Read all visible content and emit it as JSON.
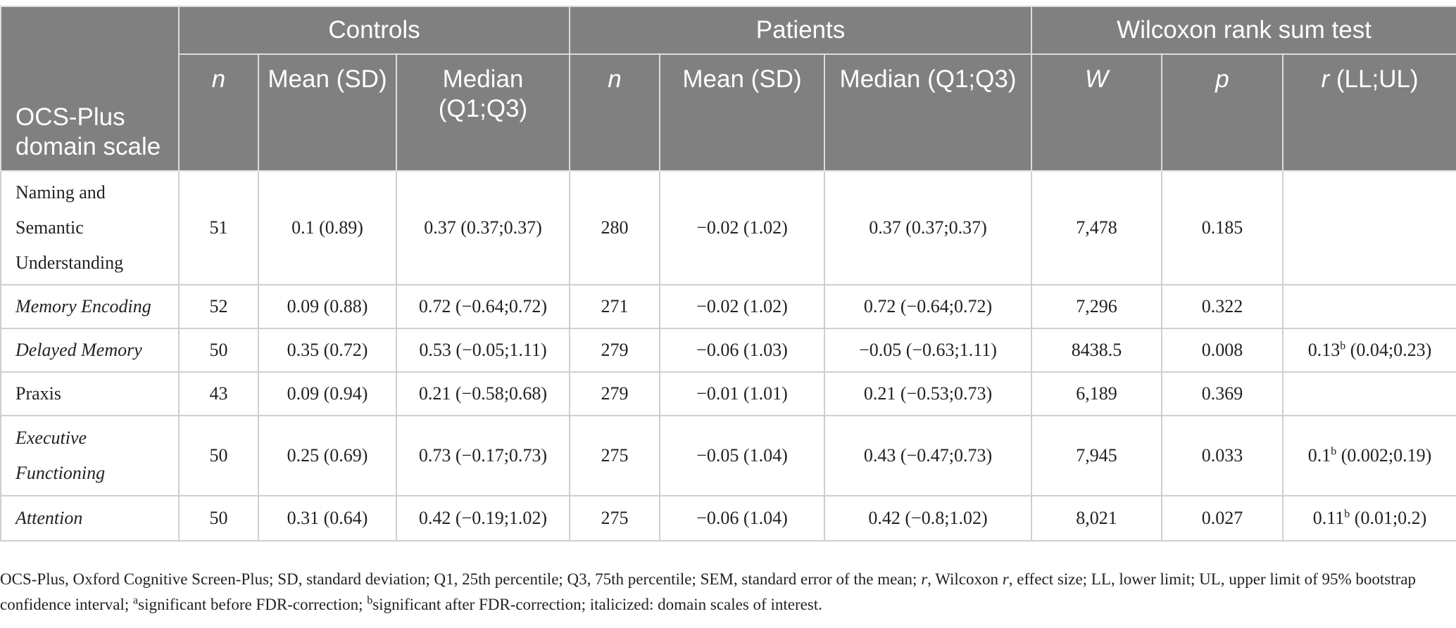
{
  "table": {
    "group_headers": {
      "domain": "OCS-Plus domain scale",
      "controls": "Controls",
      "patients": "Patients",
      "wilcoxon": "Wilcoxon rank sum test"
    },
    "sub_headers": {
      "controls_n": "n",
      "controls_mean": "Mean (SD)",
      "controls_median": "Median (Q1;Q3)",
      "patients_n": "n",
      "patients_mean": "Mean (SD)",
      "patients_median": "Median (Q1;Q3)",
      "w": "W",
      "p": "p",
      "r_italic": "r",
      "r_rest": " (LL;UL)"
    },
    "rows": [
      {
        "domain": "Naming and Semantic Understanding",
        "c_n": "51",
        "c_mean": "0.1 (0.89)",
        "c_median": "0.37 (0.37;0.37)",
        "p_n": "280",
        "p_mean": "−0.02 (1.02)",
        "p_median": "0.37 (0.37;0.37)",
        "w": "7,478",
        "p": "0.185",
        "r_val": "",
        "r_sup": "",
        "r_ci": ""
      },
      {
        "domain": "Memory Encoding",
        "c_n": "52",
        "c_mean": "0.09 (0.88)",
        "c_median": "0.72 (−0.64;0.72)",
        "p_n": "271",
        "p_mean": "−0.02 (1.02)",
        "p_median": "0.72 (−0.64;0.72)",
        "w": "7,296",
        "p": "0.322",
        "r_val": "",
        "r_sup": "",
        "r_ci": ""
      },
      {
        "domain": "Delayed Memory",
        "c_n": "50",
        "c_mean": "0.35 (0.72)",
        "c_median": "0.53 (−0.05;1.11)",
        "p_n": "279",
        "p_mean": "−0.06 (1.03)",
        "p_median": "−0.05 (−0.63;1.11)",
        "w": "8438.5",
        "p": "0.008",
        "r_val": "0.13",
        "r_sup": "b",
        "r_ci": " (0.04;0.23)"
      },
      {
        "domain": "Praxis",
        "c_n": "43",
        "c_mean": "0.09 (0.94)",
        "c_median": "0.21 (−0.58;0.68)",
        "p_n": "279",
        "p_mean": "−0.01 (1.01)",
        "p_median": "0.21 (−0.53;0.73)",
        "w": "6,189",
        "p": "0.369",
        "r_val": "",
        "r_sup": "",
        "r_ci": ""
      },
      {
        "domain": "Executive Functioning",
        "c_n": "50",
        "c_mean": "0.25 (0.69)",
        "c_median": "0.73 (−0.17;0.73)",
        "p_n": "275",
        "p_mean": "−0.05 (1.04)",
        "p_median": "0.43 (−0.47;0.73)",
        "w": "7,945",
        "p": "0.033",
        "r_val": "0.1",
        "r_sup": "b",
        "r_ci": " (0.002;0.19)"
      },
      {
        "domain": "Attention",
        "c_n": "50",
        "c_mean": "0.31 (0.64)",
        "c_median": "0.42 (−0.19;1.02)",
        "p_n": "275",
        "p_mean": "−0.06 (1.04)",
        "p_median": "0.42 (−0.8;1.02)",
        "w": "8,021",
        "p": "0.027",
        "r_val": "0.11",
        "r_sup": "b",
        "r_ci": " (0.01;0.2)"
      }
    ]
  },
  "footnote": {
    "part1": "OCS-Plus, Oxford Cognitive Screen-Plus; SD, standard deviation; Q1, 25th percentile; Q3, 75th percentile; SEM, standard error of the mean; ",
    "r_italic": "r",
    "part2": ", Wilcoxon ",
    "r_italic2": "r",
    "part3": ", effect size; LL, lower limit; UL, upper limit of 95% bootstrap confidence interval; ",
    "sup_a": "a",
    "part4": "significant before FDR-correction; ",
    "sup_b": "b",
    "part5": "significant after FDR-correction; italicized: domain scales of interest."
  }
}
